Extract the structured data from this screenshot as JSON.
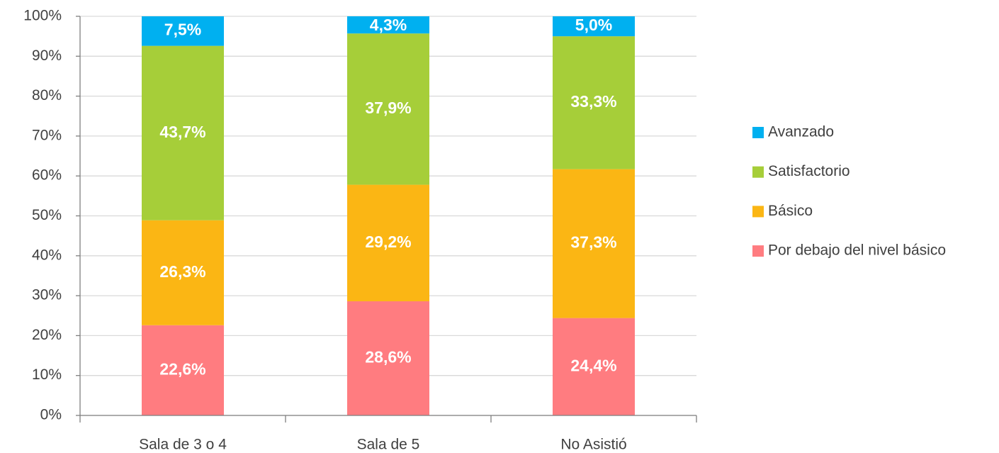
{
  "chart_data": {
    "type": "stacked_bar",
    "categories": [
      "Sala de 3 o 4",
      "Sala de 5",
      "No Asistió"
    ],
    "series": [
      {
        "name": "Por debajo del nivel básico",
        "color": "#ff7c80",
        "values": [
          22.6,
          28.6,
          24.4
        ],
        "value_labels": [
          "22,6%",
          "28,6%",
          "24,4%"
        ]
      },
      {
        "name": "Básico",
        "color": "#fbb614",
        "values": [
          26.3,
          29.2,
          37.3
        ],
        "value_labels": [
          "26,3%",
          "29,2%",
          "37,3%"
        ]
      },
      {
        "name": "Satisfactorio",
        "color": "#a6ce39",
        "values": [
          43.7,
          37.9,
          33.3
        ],
        "value_labels": [
          "43,7%",
          "37,9%",
          "33,3%"
        ]
      },
      {
        "name": "Avanzado",
        "color": "#00b0f0",
        "values": [
          7.5,
          4.3,
          5.0
        ],
        "value_labels": [
          "7,5%",
          "4,3%",
          "5,0%"
        ]
      }
    ],
    "ylim": [
      0,
      100
    ],
    "yticks": [
      {
        "value": 0,
        "label": "0%"
      },
      {
        "value": 10,
        "label": "10%"
      },
      {
        "value": 20,
        "label": "20%"
      },
      {
        "value": 30,
        "label": "30%"
      },
      {
        "value": 40,
        "label": "40%"
      },
      {
        "value": 50,
        "label": "50%"
      },
      {
        "value": 60,
        "label": "60%"
      },
      {
        "value": 70,
        "label": "70%"
      },
      {
        "value": 80,
        "label": "80%"
      },
      {
        "value": 90,
        "label": "90%"
      },
      {
        "value": 100,
        "label": "100%"
      }
    ],
    "grid": true,
    "legend": "right"
  }
}
